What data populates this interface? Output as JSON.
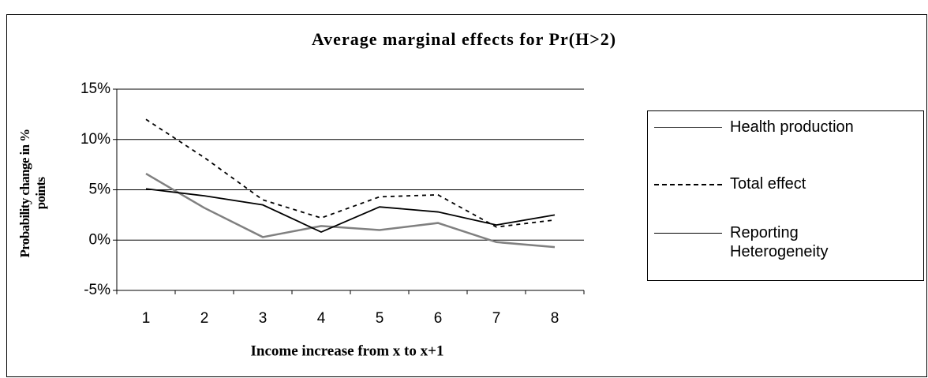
{
  "chart_data": {
    "type": "line",
    "title": "Average marginal effects for Pr(H>2)",
    "xlabel": "Income increase from x to x+1",
    "ylabel": "Probability change in % points",
    "categories": [
      "1",
      "2",
      "3",
      "4",
      "5",
      "6",
      "7",
      "8"
    ],
    "series": [
      {
        "name": "Health production",
        "color": "#808080",
        "dash": "solid",
        "values": [
          6.6,
          3.2,
          0.3,
          1.4,
          1.0,
          1.7,
          -0.2,
          -0.7
        ]
      },
      {
        "name": "Total effect",
        "color": "#000000",
        "dash": "dotted",
        "values": [
          12.0,
          8.2,
          4.0,
          2.2,
          4.3,
          4.5,
          1.3,
          2.0
        ]
      },
      {
        "name": "Reporting Heterogeneity",
        "color": "#000000",
        "dash": "solid",
        "values": [
          5.1,
          4.4,
          3.5,
          0.8,
          3.3,
          2.8,
          1.5,
          2.5
        ]
      }
    ],
    "ylim": [
      -5,
      15
    ],
    "yticks": [
      {
        "value": -5,
        "label": "-5%"
      },
      {
        "value": 0,
        "label": "0%"
      },
      {
        "value": 5,
        "label": "5%"
      },
      {
        "value": 10,
        "label": "10%"
      },
      {
        "value": 15,
        "label": "15%"
      }
    ],
    "grid": true,
    "legend": "right"
  }
}
